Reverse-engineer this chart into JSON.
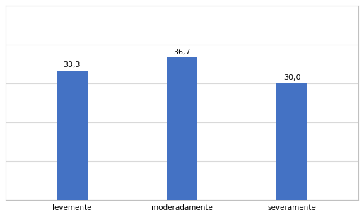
{
  "categories": [
    "levemente",
    "moderadamente",
    "severamente"
  ],
  "values": [
    33.3,
    36.7,
    30.0
  ],
  "labels": [
    "33,3",
    "36,7",
    "30,0"
  ],
  "bar_color": "#4472C4",
  "background_color": "#ffffff",
  "ylim": [
    0,
    50
  ],
  "bar_width": 0.28,
  "label_fontsize": 8,
  "tick_fontsize": 7.5,
  "grid_color": "#d9d9d9",
  "grid_linewidth": 0.8,
  "border_color": "#c0c0c0",
  "ytick_positions": [
    0,
    10,
    20,
    30,
    40,
    50
  ]
}
